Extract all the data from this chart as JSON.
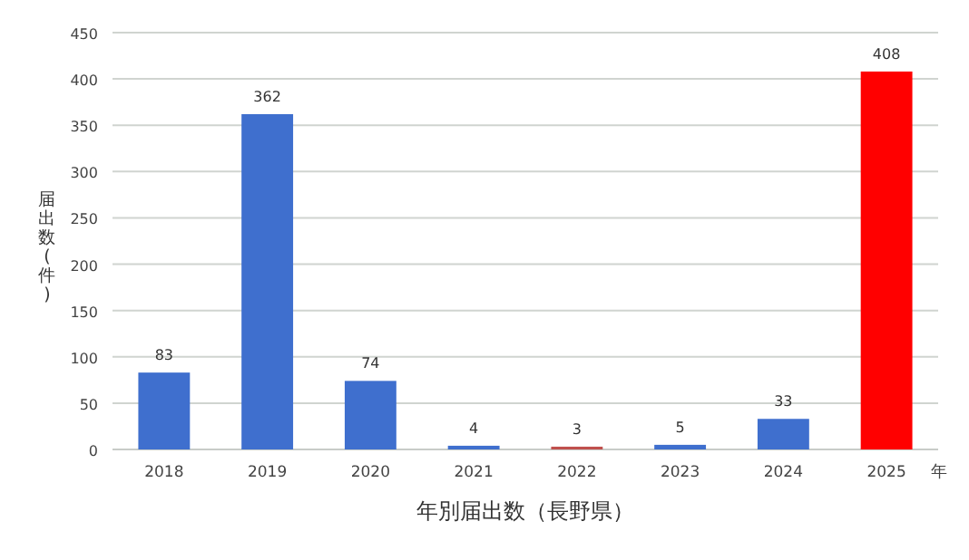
{
  "chart_data": {
    "type": "bar",
    "xlabel": "年別届出数（長野県）",
    "ylabel": "届出数(件)",
    "annotations": [
      "年"
    ],
    "categories": [
      "2018",
      "2019",
      "2020",
      "2021",
      "2022",
      "2023",
      "2024",
      "2025"
    ],
    "values": [
      83,
      362,
      74,
      4,
      3,
      5,
      33,
      408
    ],
    "colors": [
      "#3f6fce",
      "#3f6fce",
      "#3f6fce",
      "#3f6fce",
      "#c0504d",
      "#3f6fce",
      "#3f6fce",
      "#ff0000"
    ],
    "ylim": [
      0,
      450
    ],
    "yticks": [
      0,
      50,
      100,
      150,
      200,
      250,
      300,
      350,
      400,
      450
    ],
    "grid": "y",
    "data_labels": true
  }
}
